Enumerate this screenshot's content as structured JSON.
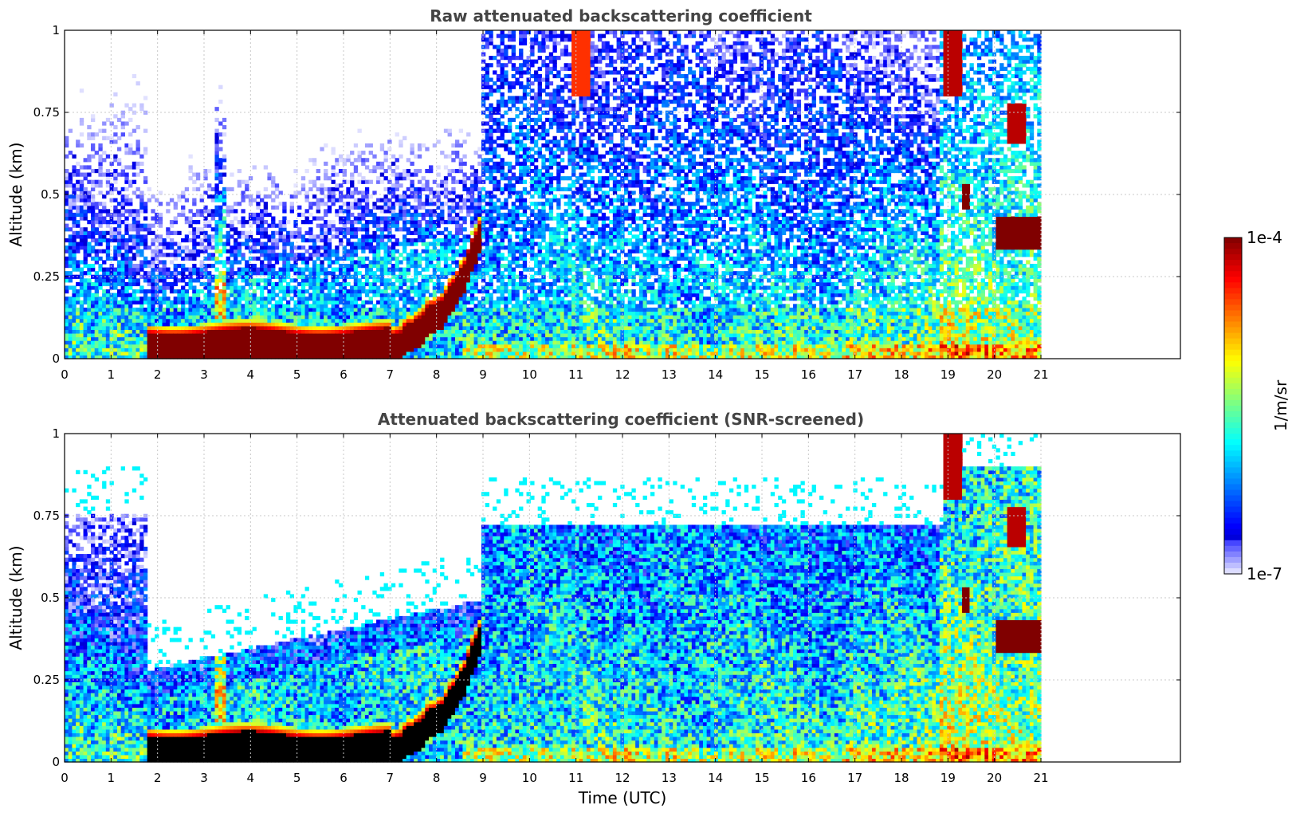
{
  "chart_data": [
    {
      "type": "heatmap",
      "title": "Raw attenuated backscattering coefficient",
      "ylabel": "Altitude (km)",
      "xlabel": "",
      "xlim": [
        0,
        24
      ],
      "ylim": [
        0,
        1
      ],
      "x_ticks": [
        "0",
        "1",
        "2",
        "3",
        "4",
        "5",
        "6",
        "7",
        "8",
        "9",
        "10",
        "11",
        "12",
        "13",
        "14",
        "15",
        "16",
        "17",
        "18",
        "19",
        "20",
        "21"
      ],
      "y_ticks": [
        "0",
        "0.25",
        "0.5",
        "0.75",
        "1"
      ],
      "data_extent_hours": [
        0,
        21
      ],
      "grid": true,
      "screened": false,
      "features": [
        {
          "name": "surface layer",
          "x": [
            1.8,
            7.0
          ],
          "altitude_km": [
            0.0,
            0.09
          ]
        },
        {
          "name": "rising layer",
          "x": [
            7.0,
            9.0
          ],
          "altitude_km": [
            0.09,
            0.42
          ]
        },
        {
          "name": "upper cloud",
          "x": [
            18.8,
            21.0
          ],
          "altitude_km": [
            0.3,
            0.95
          ]
        }
      ]
    },
    {
      "type": "heatmap",
      "title": "Attenuated backscattering coefficient (SNR-screened)",
      "ylabel": "Altitude (km)",
      "xlabel": "Time (UTC)",
      "xlim": [
        0,
        24
      ],
      "ylim": [
        0,
        1
      ],
      "x_ticks": [
        "0",
        "1",
        "2",
        "3",
        "4",
        "5",
        "6",
        "7",
        "8",
        "9",
        "10",
        "11",
        "12",
        "13",
        "14",
        "15",
        "16",
        "17",
        "18",
        "19",
        "20",
        "21"
      ],
      "y_ticks": [
        "0",
        "0.25",
        "0.5",
        "0.75",
        "1"
      ],
      "data_extent_hours": [
        0,
        21
      ],
      "grid": true,
      "screened": true
    }
  ],
  "colorbar": {
    "label": "1/m/sr",
    "max_label": "1e-4",
    "min_label": "1e-7",
    "scale": "log",
    "colormap": "jet",
    "colors": {
      "low": "#e8e8ff",
      "mid_low": "#0a2af5",
      "mid": "#35e0e0",
      "mid_high": "#f5f000",
      "high": "#8b0000"
    }
  }
}
